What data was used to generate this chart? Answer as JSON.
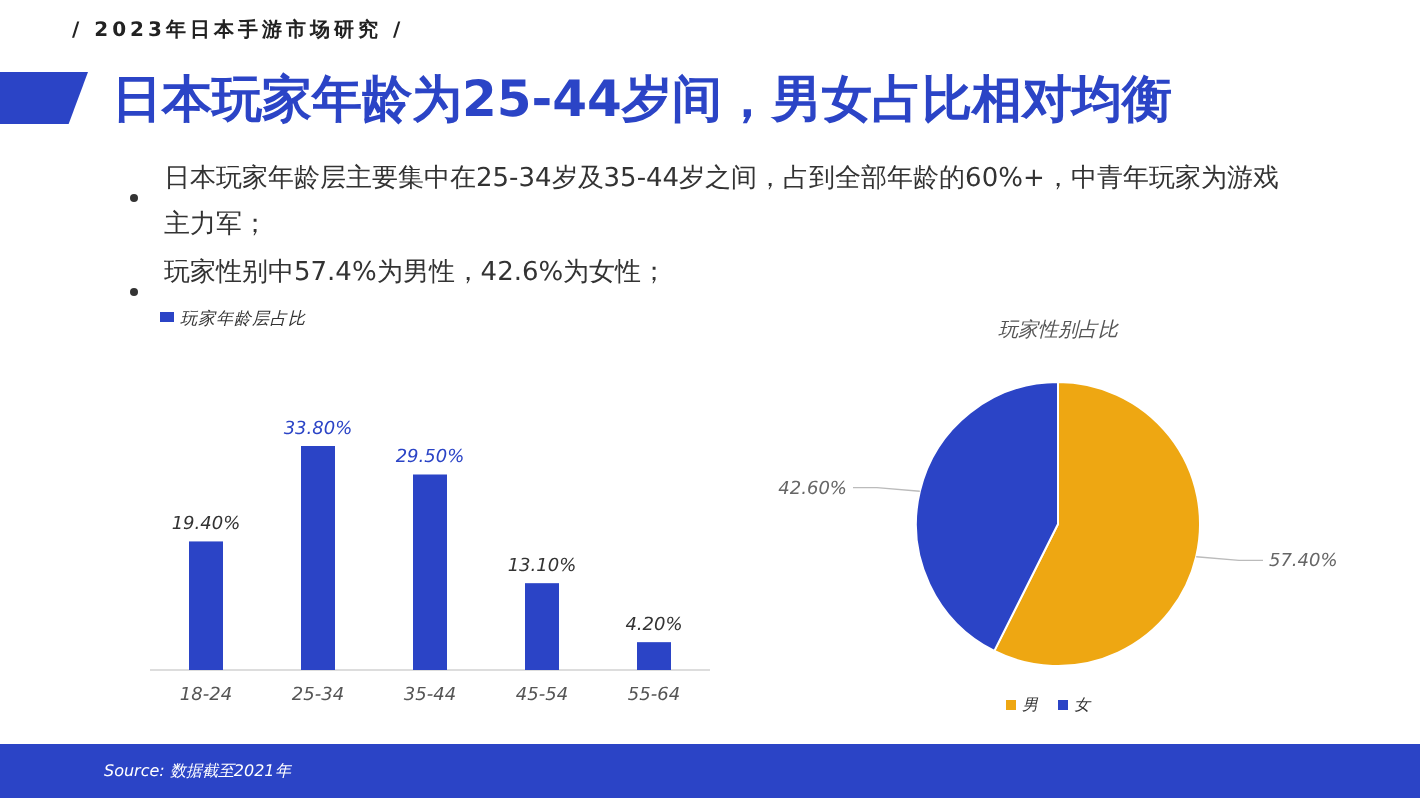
{
  "chart_data": [
    {
      "type": "other",
      "subtitle": "/  2023年日本手游市场研究  /",
      "title": "日本玩家年龄为25-44岁间，男女占比相对均衡",
      "annotations": [
        "日本玩家年龄层主要集中在25-34岁及35-44岁之间，占到全部年龄的60%+，中青年玩家为游戏主力军；",
        "玩家性别中57.4%为男性，42.6%为女性；",
        "Source:  数据截至2021年"
      ]
    },
    {
      "type": "bar",
      "categories": [
        "18-24",
        "25-34",
        "35-44",
        "45-54",
        "55-64"
      ],
      "series": [
        {
          "name": "玩家年龄层占比",
          "color": "#2b44c6",
          "values": [
            19.4,
            33.8,
            29.5,
            13.1,
            4.2
          ],
          "value_labels": [
            "19.40%",
            "33.80%",
            "29.50%",
            "13.10%",
            "4.20%"
          ]
        }
      ],
      "legend": "top left"
    },
    {
      "type": "pie",
      "title": "玩家性别占比",
      "categories": [
        "男",
        "女"
      ],
      "values": [
        57.4,
        42.6
      ],
      "colors": [
        "#eea712",
        "#2b44c6"
      ],
      "value_labels": [
        "57.40%",
        "42.60%"
      ],
      "legend": "bottom"
    }
  ]
}
